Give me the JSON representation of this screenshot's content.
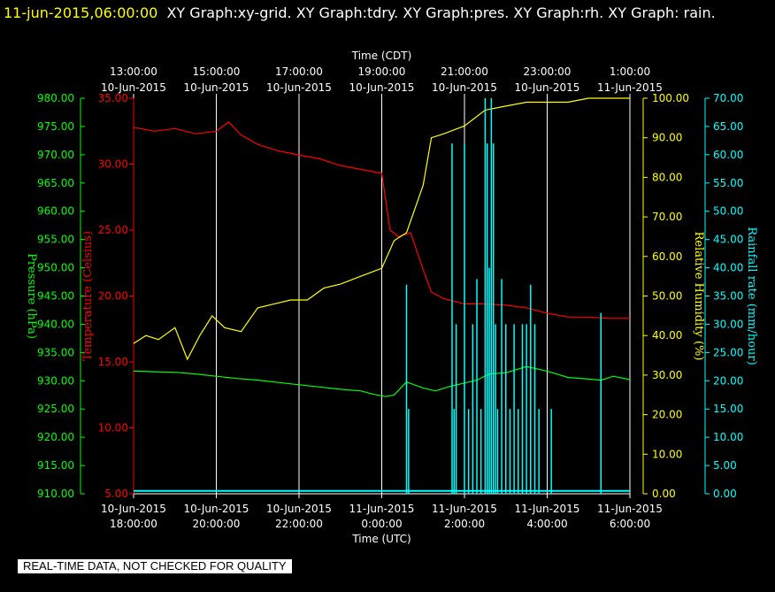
{
  "header": {
    "timestamp": "11-jun-2015,06:00:00",
    "title": "XY Graph:xy-grid.  XY Graph:tdry.  XY Graph:pres.  XY Graph:rh.  XY Graph: rain."
  },
  "quality_note": "REAL-TIME DATA, NOT CHECKED FOR QUALITY",
  "colors": {
    "pressure": "#00ff00",
    "temperature": "#ff0000",
    "humidity": "#ffff00",
    "rain": "#00ffff",
    "grid": "#ffffff"
  },
  "chart_data": {
    "type": "line",
    "x_top_label": "Time (CDT)",
    "x_bottom_label": "Time (UTC)",
    "x_range_hours": [
      0,
      12
    ],
    "x_bottom_ticks": [
      {
        "date": "10-Jun-2015",
        "time": "18:00:00"
      },
      {
        "date": "10-Jun-2015",
        "time": "20:00:00"
      },
      {
        "date": "10-Jun-2015",
        "time": "22:00:00"
      },
      {
        "date": "11-Jun-2015",
        "time": "0:00:00"
      },
      {
        "date": "11-Jun-2015",
        "time": "2:00:00"
      },
      {
        "date": "11-Jun-2015",
        "time": "4:00:00"
      },
      {
        "date": "11-Jun-2015",
        "time": "6:00:00"
      }
    ],
    "x_top_ticks": [
      {
        "time": "13:00:00",
        "date": "10-Jun-2015"
      },
      {
        "time": "15:00:00",
        "date": "10-Jun-2015"
      },
      {
        "time": "17:00:00",
        "date": "10-Jun-2015"
      },
      {
        "time": "19:00:00",
        "date": "10-Jun-2015"
      },
      {
        "time": "21:00:00",
        "date": "10-Jun-2015"
      },
      {
        "time": "23:00:00",
        "date": "10-Jun-2015"
      },
      {
        "time": "1:00:00",
        "date": "11-Jun-2015"
      }
    ],
    "axes": {
      "pressure": {
        "label": "Pressure (hPa)",
        "range": [
          910,
          980
        ],
        "ticks": [
          "910.00",
          "915.00",
          "920.00",
          "925.00",
          "930.00",
          "935.00",
          "940.00",
          "945.00",
          "950.00",
          "955.00",
          "960.00",
          "965.00",
          "970.00",
          "975.00",
          "980.00"
        ]
      },
      "temperature": {
        "label": "Temperature (Celsius)",
        "range": [
          5,
          35
        ],
        "ticks": [
          "5.00",
          "10.00",
          "15.00",
          "20.00",
          "25.00",
          "30.00",
          "35.00"
        ]
      },
      "humidity": {
        "label": "Relative Humidity (%)",
        "range": [
          0,
          100
        ],
        "ticks": [
          "0.00",
          "10.00",
          "20.00",
          "30.00",
          "40.00",
          "50.00",
          "60.00",
          "70.00",
          "80.00",
          "90.00",
          "100.00"
        ]
      },
      "rain": {
        "label": "Rainfall rate (mm/hour)",
        "range": [
          0,
          70
        ],
        "ticks": [
          "0.00",
          "5.00",
          "10.00",
          "15.00",
          "20.00",
          "25.00",
          "30.00",
          "35.00",
          "40.00",
          "45.00",
          "50.00",
          "55.00",
          "60.00",
          "65.00",
          "70.00"
        ]
      }
    },
    "series": [
      {
        "key": "pressure",
        "x": [
          0,
          0.5,
          1,
          1.5,
          2,
          2.5,
          3,
          3.5,
          4,
          4.5,
          5,
          5.5,
          5.8,
          6.1,
          6.3,
          6.6,
          7,
          7.3,
          7.6,
          8,
          8.3,
          8.6,
          9,
          9.5,
          10,
          10.5,
          11,
          11.3,
          11.6,
          12
        ],
        "y": [
          931.7,
          931.6,
          931.5,
          931.2,
          930.8,
          930.4,
          930.1,
          929.7,
          929.3,
          928.9,
          928.5,
          928.2,
          927.6,
          927.2,
          927.5,
          929.8,
          928.7,
          928.2,
          928.9,
          929.6,
          930.1,
          931.2,
          931.4,
          932.5,
          931.7,
          930.6,
          930.3,
          930.1,
          930.8,
          930.2
        ]
      },
      {
        "key": "temperature",
        "x": [
          0,
          0.5,
          1,
          1.5,
          2,
          2.3,
          2.6,
          3,
          3.5,
          4,
          4.5,
          5,
          5.5,
          6,
          6.2,
          6.4,
          6.7,
          7,
          7.2,
          7.5,
          8,
          8.5,
          9,
          9.5,
          10,
          10.5,
          11,
          11.5,
          12
        ],
        "y": [
          32.8,
          32.5,
          32.7,
          32.3,
          32.5,
          33.2,
          32.2,
          31.5,
          31.0,
          30.7,
          30.4,
          29.9,
          29.6,
          29.3,
          25.0,
          24.5,
          24.8,
          22.0,
          20.3,
          19.8,
          19.4,
          19.4,
          19.3,
          19.1,
          18.7,
          18.4,
          18.4,
          18.3,
          18.3
        ]
      },
      {
        "key": "humidity",
        "x": [
          0,
          0.3,
          0.6,
          1,
          1.3,
          1.6,
          1.9,
          2.2,
          2.6,
          3,
          3.4,
          3.8,
          4.2,
          4.6,
          5,
          5.5,
          6,
          6.3,
          6.6,
          7,
          7.2,
          7.5,
          8,
          8.5,
          9,
          9.5,
          10,
          10.5,
          11,
          11.5,
          12
        ],
        "y": [
          38,
          40,
          39,
          42,
          34,
          40,
          45,
          42,
          41,
          47,
          48,
          49,
          49,
          52,
          53,
          55,
          57,
          64,
          66,
          78,
          90,
          91,
          93,
          97,
          98,
          99,
          99,
          99,
          100,
          100,
          100
        ]
      },
      {
        "key": "rain",
        "type": "bars",
        "x": [
          6.6,
          6.65,
          7.7,
          7.75,
          7.8,
          8,
          8.1,
          8.2,
          8.3,
          8.4,
          8.5,
          8.55,
          8.6,
          8.65,
          8.7,
          8.75,
          8.8,
          8.9,
          9,
          9.1,
          9.2,
          9.3,
          9.4,
          9.5,
          9.6,
          9.7,
          9.8,
          10.1,
          11.3
        ],
        "y": [
          37,
          15,
          62,
          15,
          30,
          62,
          15,
          30,
          38,
          15,
          70,
          62,
          40,
          70,
          62,
          30,
          15,
          38,
          30,
          15,
          30,
          15,
          30,
          30,
          37,
          30,
          15,
          15,
          32
        ]
      }
    ]
  }
}
